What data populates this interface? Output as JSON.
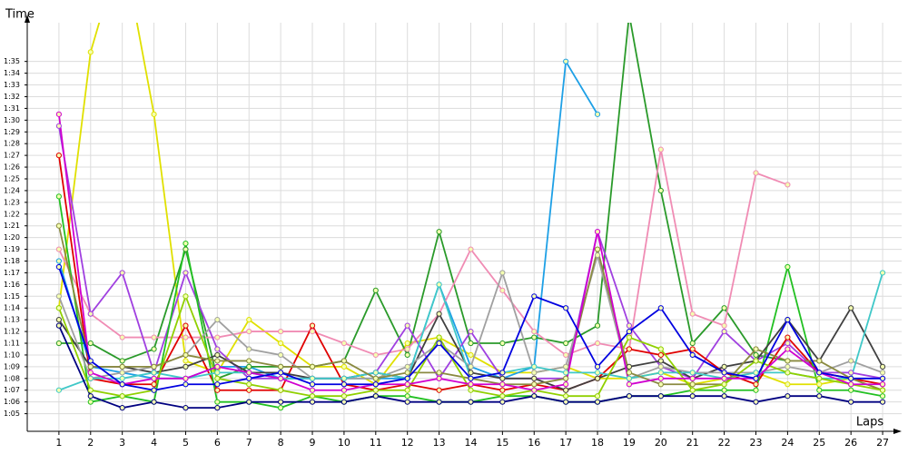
{
  "chart_data": {
    "type": "line",
    "y_label": "Time",
    "x_label": "Laps",
    "x": [
      1,
      2,
      3,
      4,
      5,
      6,
      7,
      8,
      9,
      10,
      11,
      12,
      13,
      14,
      15,
      16,
      17,
      18,
      19,
      20,
      21,
      22,
      23,
      24,
      25,
      26,
      27
    ],
    "xlim": [
      0,
      27.6
    ],
    "ylim": [
      63.5,
      98.3
    ],
    "grid": true,
    "xticks": [
      1,
      2,
      3,
      4,
      5,
      6,
      7,
      8,
      9,
      10,
      11,
      12,
      13,
      14,
      15,
      16,
      17,
      18,
      19,
      20,
      21,
      22,
      23,
      24,
      25,
      26,
      27
    ],
    "yticks": [
      {
        "value": 65,
        "label": "1:05"
      },
      {
        "value": 66,
        "label": "1:06"
      },
      {
        "value": 67,
        "label": "1:07"
      },
      {
        "value": 68,
        "label": "1:08"
      },
      {
        "value": 69,
        "label": "1:09"
      },
      {
        "value": 70,
        "label": "1:10"
      },
      {
        "value": 71,
        "label": "1:11"
      },
      {
        "value": 72,
        "label": "1:12"
      },
      {
        "value": 73,
        "label": "1:13"
      },
      {
        "value": 74,
        "label": "1:14"
      },
      {
        "value": 75,
        "label": "1:15"
      },
      {
        "value": 76,
        "label": "1:16"
      },
      {
        "value": 77,
        "label": "1:17"
      },
      {
        "value": 78,
        "label": "1:18"
      },
      {
        "value": 79,
        "label": "1:19"
      },
      {
        "value": 80,
        "label": "1:20"
      },
      {
        "value": 81,
        "label": "1:21"
      },
      {
        "value": 82,
        "label": "1:22"
      },
      {
        "value": 83,
        "label": "1:23"
      },
      {
        "value": 84,
        "label": "1:24"
      },
      {
        "value": 85,
        "label": "1:25"
      },
      {
        "value": 86,
        "label": "1:26"
      },
      {
        "value": 87,
        "label": "1:27"
      },
      {
        "value": 88,
        "label": "1:28"
      },
      {
        "value": 89,
        "label": "1:29"
      },
      {
        "value": 90,
        "label": "1:30"
      },
      {
        "value": 91,
        "label": "1:31"
      },
      {
        "value": 92,
        "label": "1:32"
      },
      {
        "value": 93,
        "label": "1:33"
      },
      {
        "value": 94,
        "label": "1:34"
      },
      {
        "value": 95,
        "label": "1:35"
      }
    ],
    "series": [
      {
        "color": "#e0e000",
        "values": [
          74,
          95.8,
          105,
          90.5,
          69.5,
          68.5,
          73,
          71,
          69,
          69,
          67.5,
          71,
          71.5,
          70,
          68.5,
          68.5,
          69,
          68,
          68,
          68.5,
          67.5,
          68,
          68.5,
          67.5,
          67.5,
          68,
          67
        ]
      },
      {
        "color": "#1ea0e6",
        "values": [
          78,
          69,
          68.5,
          68,
          68,
          69,
          69,
          68,
          68,
          68,
          68,
          68,
          76,
          69,
          68,
          69,
          95,
          90.5,
          null,
          null,
          null,
          null,
          null,
          null,
          null,
          null,
          null
        ]
      },
      {
        "color": "#2a9a2a",
        "values": [
          71,
          71,
          69.5,
          70.5,
          79,
          68,
          69,
          69,
          69,
          69.5,
          75.5,
          70,
          80.5,
          71,
          71,
          71.5,
          71,
          72.5,
          99,
          84,
          71,
          74,
          70,
          69.5,
          null,
          null,
          null
        ]
      },
      {
        "color": "#f08cb4",
        "values": [
          79,
          73.5,
          71.5,
          71.5,
          71.5,
          71.5,
          72,
          72,
          72,
          71,
          70,
          70.5,
          73.5,
          79,
          75.5,
          72,
          70,
          71,
          70.5,
          87.5,
          73.5,
          72.5,
          85.5,
          84.5,
          null,
          null,
          null
        ]
      },
      {
        "color": "#a040e0",
        "values": [
          89.5,
          73.5,
          77,
          68.5,
          77,
          70.5,
          68,
          68,
          68,
          68,
          68.5,
          72.5,
          68,
          72,
          68,
          68,
          68,
          80.5,
          72.5,
          69,
          68,
          72,
          69.5,
          71,
          68.5,
          68.5,
          68
        ]
      },
      {
        "color": "#e00000",
        "values": [
          87,
          68,
          67.5,
          67.5,
          72.5,
          67,
          67,
          67,
          72.5,
          67.5,
          67,
          67.5,
          67,
          67.5,
          67,
          67.5,
          67,
          68,
          70.5,
          70,
          70.5,
          68.5,
          67.5,
          71.5,
          68.5,
          68,
          67.5
        ]
      },
      {
        "color": "#22c022",
        "values": [
          83.5,
          66,
          66.5,
          66,
          79.5,
          66,
          66,
          65.5,
          66.5,
          66,
          66.5,
          66.5,
          66,
          66,
          66.5,
          66.5,
          66,
          66,
          66.5,
          66.5,
          67,
          67,
          67,
          77.5,
          67,
          67,
          66.5
        ]
      },
      {
        "color": "#404040",
        "values": [
          73,
          69,
          69,
          68.5,
          69,
          70,
          68.5,
          68.5,
          68,
          68,
          68.5,
          68,
          73.5,
          68.5,
          68,
          68,
          67,
          68,
          69,
          69.5,
          68,
          69,
          69.5,
          73,
          69.5,
          74,
          69
        ]
      },
      {
        "color": "#a0a0a0",
        "values": [
          75,
          68,
          68.5,
          69,
          70,
          73,
          70.5,
          70,
          68,
          68,
          68,
          69,
          71,
          69,
          77,
          68.5,
          69,
          78.5,
          68,
          69,
          68.5,
          68.5,
          68.5,
          69,
          68.5,
          69.5,
          68.5
        ]
      },
      {
        "color": "#40c8c8",
        "values": [
          67,
          68,
          68,
          68.5,
          68,
          68.5,
          68.5,
          68,
          68,
          68,
          68.5,
          68,
          76,
          68,
          68.5,
          69,
          68.5,
          68.5,
          68,
          68.5,
          68.5,
          68,
          68.5,
          68.5,
          68,
          68,
          77
        ]
      },
      {
        "color": "#8a8a40",
        "values": [
          81,
          69,
          69,
          69,
          70,
          69.5,
          69.5,
          69,
          69,
          69.5,
          68,
          68.5,
          68.5,
          68,
          67.5,
          67.5,
          68,
          79,
          68.5,
          67.5,
          67.5,
          67.5,
          70.5,
          69.5,
          69.5,
          68,
          67
        ]
      },
      {
        "color": "#000080",
        "values": [
          72.5,
          66.5,
          65.5,
          66,
          65.5,
          65.5,
          66,
          66,
          66,
          66,
          66.5,
          66,
          66,
          66,
          66,
          66.5,
          66,
          66,
          66.5,
          66.5,
          66.5,
          66.5,
          66,
          66.5,
          66.5,
          66,
          66
        ]
      },
      {
        "color": "#90d000",
        "values": [
          74,
          67,
          66.5,
          67,
          75,
          68,
          67.5,
          67,
          66.5,
          66.5,
          67,
          67,
          71.5,
          67,
          66.5,
          67,
          66.5,
          66.5,
          71.5,
          70.5,
          67,
          67.5,
          69.5,
          68.5,
          68,
          67.5,
          67
        ]
      },
      {
        "color": "#d000d0",
        "values": [
          90.5,
          68.5,
          67.5,
          68,
          68,
          69,
          68.5,
          68,
          67,
          67,
          67.5,
          67.5,
          68,
          67.5,
          67.5,
          67,
          67.5,
          80.5,
          67.5,
          68,
          68,
          68,
          68,
          70.5,
          68.5,
          67.5,
          67.5
        ]
      },
      {
        "color": "#0000e0",
        "values": [
          77.5,
          69.5,
          67.5,
          67,
          67.5,
          67.5,
          68,
          68.5,
          67.5,
          67.5,
          67.5,
          68,
          71,
          68,
          68.5,
          75,
          74,
          69,
          72,
          74,
          70,
          68.5,
          68,
          73,
          68.5,
          68,
          68
        ]
      }
    ]
  }
}
